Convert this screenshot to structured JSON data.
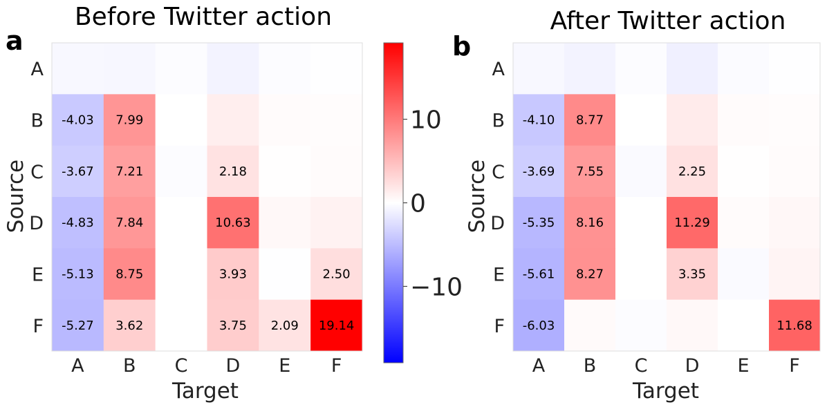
{
  "chart_data": [
    {
      "type": "heatmap",
      "panel": "a",
      "title": "Before Twitter action",
      "xlabel": "Target",
      "ylabel": "Source",
      "x_categories": [
        "A",
        "B",
        "C",
        "D",
        "E",
        "F"
      ],
      "y_categories": [
        "A",
        "B",
        "C",
        "D",
        "E",
        "F"
      ],
      "values": [
        [
          -0.5,
          -0.6,
          -0.2,
          -0.9,
          -0.2,
          -0.1
        ],
        [
          -4.03,
          7.99,
          0.0,
          1.3,
          0.3,
          0.2
        ],
        [
          -3.67,
          7.21,
          -0.2,
          2.18,
          0.1,
          0.3
        ],
        [
          -4.83,
          7.84,
          0.0,
          10.63,
          0.5,
          1.0
        ],
        [
          -5.13,
          8.75,
          0.0,
          3.93,
          -0.1,
          2.5
        ],
        [
          -5.27,
          3.62,
          0.0,
          3.75,
          2.09,
          19.14
        ]
      ],
      "labels": [
        [
          "",
          "",
          "",
          "",
          "",
          ""
        ],
        [
          "-4.03",
          "7.99",
          "",
          "",
          "",
          ""
        ],
        [
          "-3.67",
          "7.21",
          "",
          "2.18",
          "",
          ""
        ],
        [
          "-4.83",
          "7.84",
          "",
          "10.63",
          "",
          ""
        ],
        [
          "-5.13",
          "8.75",
          "",
          "3.93",
          "",
          "2.50"
        ],
        [
          "-5.27",
          "3.62",
          "",
          "3.75",
          "2.09",
          "19.14"
        ]
      ]
    },
    {
      "type": "heatmap",
      "panel": "b",
      "title": "After Twitter action",
      "xlabel": "Target",
      "ylabel": "Source",
      "x_categories": [
        "A",
        "B",
        "C",
        "D",
        "E",
        "F"
      ],
      "y_categories": [
        "A",
        "B",
        "C",
        "D",
        "E",
        "F"
      ],
      "values": [
        [
          -0.5,
          -0.9,
          -0.2,
          -1.1,
          -0.3,
          -0.1
        ],
        [
          -4.1,
          8.77,
          0.0,
          1.5,
          0.3,
          0.2
        ],
        [
          -3.69,
          7.55,
          -0.4,
          2.25,
          0.1,
          0.3
        ],
        [
          -5.35,
          8.16,
          0.0,
          11.29,
          0.3,
          0.6
        ],
        [
          -5.61,
          8.27,
          0.0,
          3.35,
          -0.4,
          0.8
        ],
        [
          -6.03,
          0.4,
          -0.2,
          0.5,
          0.0,
          11.68
        ]
      ],
      "labels": [
        [
          "",
          "",
          "",
          "",
          "",
          ""
        ],
        [
          "-4.10",
          "8.77",
          "",
          "",
          "",
          ""
        ],
        [
          "-3.69",
          "7.55",
          "",
          "2.25",
          "",
          ""
        ],
        [
          "-5.35",
          "8.16",
          "",
          "11.29",
          "",
          ""
        ],
        [
          "-5.61",
          "8.27",
          "",
          "3.35",
          "",
          ""
        ],
        [
          "-6.03",
          "",
          "",
          "",
          "",
          "11.68"
        ]
      ]
    }
  ],
  "colorbar": {
    "colormap": "bwr",
    "vmin": -19.14,
    "vmax": 19.14,
    "ticks": [
      {
        "value": 10,
        "label": "10"
      },
      {
        "value": 0,
        "label": "0"
      },
      {
        "value": -10,
        "label": "−10"
      }
    ],
    "colors": {
      "low": "#0000ff",
      "mid": "#ffffff",
      "high": "#ff0000"
    }
  }
}
